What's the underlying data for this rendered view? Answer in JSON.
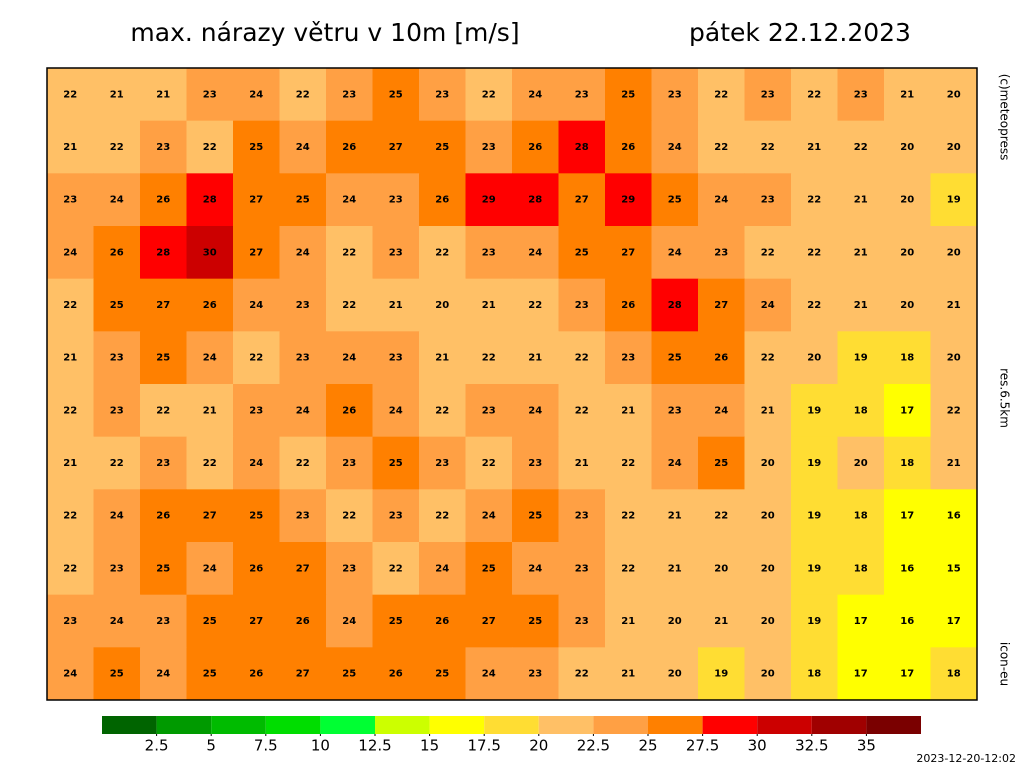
{
  "header": {
    "title": "max. nárazy větru v 10m [m/s]",
    "date": "pátek 22.12.2023"
  },
  "side_labels": {
    "copyright": "(c)meteopress",
    "resolution": "res.6.5km",
    "model": "icon-eu"
  },
  "map": {
    "values": [
      [
        22,
        21,
        21,
        23,
        24,
        22,
        23,
        25,
        23,
        22,
        24,
        23,
        25,
        23,
        22,
        23,
        22,
        23,
        21,
        20
      ],
      [
        21,
        22,
        23,
        22,
        25,
        24,
        26,
        27,
        25,
        23,
        26,
        28,
        26,
        24,
        22,
        22,
        21,
        22,
        20,
        20
      ],
      [
        23,
        24,
        26,
        28,
        27,
        25,
        24,
        23,
        26,
        29,
        28,
        27,
        29,
        25,
        24,
        23,
        22,
        21,
        20,
        19
      ],
      [
        24,
        26,
        28,
        30,
        27,
        24,
        22,
        23,
        22,
        23,
        24,
        25,
        27,
        24,
        23,
        22,
        22,
        21,
        20,
        20
      ],
      [
        22,
        25,
        27,
        26,
        24,
        23,
        22,
        21,
        20,
        21,
        22,
        23,
        26,
        28,
        27,
        24,
        22,
        21,
        20,
        21
      ],
      [
        21,
        23,
        25,
        24,
        22,
        23,
        24,
        23,
        21,
        22,
        21,
        22,
        23,
        25,
        26,
        22,
        20,
        19,
        18,
        20
      ],
      [
        22,
        23,
        22,
        21,
        23,
        24,
        26,
        24,
        22,
        23,
        24,
        22,
        21,
        23,
        24,
        21,
        19,
        18,
        17,
        22
      ],
      [
        21,
        22,
        23,
        22,
        24,
        22,
        23,
        25,
        23,
        22,
        23,
        21,
        22,
        24,
        25,
        20,
        19,
        20,
        18,
        21
      ],
      [
        22,
        24,
        26,
        27,
        25,
        23,
        22,
        23,
        22,
        24,
        25,
        23,
        22,
        21,
        22,
        20,
        19,
        18,
        17,
        16
      ],
      [
        22,
        23,
        25,
        24,
        26,
        27,
        23,
        22,
        24,
        25,
        24,
        23,
        22,
        21,
        20,
        20,
        19,
        18,
        16,
        15
      ],
      [
        23,
        24,
        23,
        25,
        27,
        26,
        24,
        25,
        26,
        27,
        25,
        23,
        21,
        20,
        21,
        20,
        19,
        17,
        16,
        17
      ],
      [
        24,
        25,
        24,
        25,
        26,
        27,
        25,
        26,
        25,
        24,
        23,
        22,
        21,
        20,
        19,
        20,
        18,
        17,
        17,
        18
      ]
    ]
  },
  "legend": {
    "lim": [
      0,
      37.5
    ],
    "bounds": [
      0,
      2.5,
      5,
      7.5,
      10,
      12.5,
      15,
      17.5,
      20,
      22.5,
      25,
      27.5,
      30,
      32.5,
      35,
      37.5
    ],
    "colors": [
      "#006400",
      "#009a00",
      "#00bb00",
      "#00dd00",
      "#00ff33",
      "#ccff00",
      "#ffff00",
      "#ffdd33",
      "#ffc066",
      "#ffa044",
      "#ff8000",
      "#ff0000",
      "#cc0000",
      "#a00000",
      "#7a0000",
      "#440000"
    ],
    "ticks": [
      2.5,
      5,
      7.5,
      10,
      12.5,
      15,
      17.5,
      20,
      22.5,
      25,
      27.5,
      30,
      32.5,
      35
    ]
  },
  "timestamp": "2023-12-20-12:02"
}
